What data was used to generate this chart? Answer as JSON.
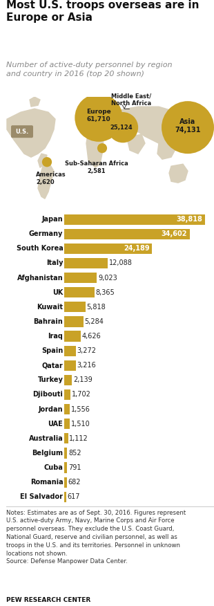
{
  "title": "Most U.S. troops overseas are in\nEurope or Asia",
  "subtitle": "Number of active-duty personnel by region\nand country in 2016 (top 20 shown)",
  "countries": [
    "Japan",
    "Germany",
    "South Korea",
    "Italy",
    "Afghanistan",
    "UK",
    "Kuwait",
    "Bahrain",
    "Iraq",
    "Spain",
    "Qatar",
    "Turkey",
    "Djibouti",
    "Jordan",
    "UAE",
    "Australia",
    "Belgium",
    "Cuba",
    "Romania",
    "El Salvador"
  ],
  "values": [
    38818,
    34602,
    24189,
    12088,
    9023,
    8365,
    5818,
    5284,
    4626,
    3272,
    3216,
    2139,
    1702,
    1556,
    1510,
    1112,
    852,
    791,
    682,
    617
  ],
  "bold_countries": [
    "Japan",
    "Germany",
    "South Korea",
    "Italy",
    "Afghanistan",
    "UK",
    "Kuwait",
    "Bahrain",
    "Iraq",
    "Spain",
    "Qatar",
    "Turkey",
    "Djibouti",
    "Jordan",
    "UAE",
    "Australia",
    "Belgium",
    "Cuba",
    "Romania",
    "El Salvador"
  ],
  "bar_color": "#C9A227",
  "background_color": "#FFFFFF",
  "map_bg": "#EDE8DC",
  "land_color": "#D9D0BB",
  "us_color": "#9B8B6A",
  "bubble_color": "#C9A227",
  "notes": "Notes: Estimates are as of Sept. 30, 2016. Figures represent\nU.S. active-duty Army, Navy, Marine Corps and Air Force\npersonnel overseas. They exclude the U.S. Coast Guard,\nNational Guard, reserve and civilian personnel, as well as\ntroops in the U.S. and its territories. Personnel in unknown\nlocations not shown.\nSource: Defense Manpower Data Center.",
  "source_label": "PEW RESEARCH CENTER"
}
